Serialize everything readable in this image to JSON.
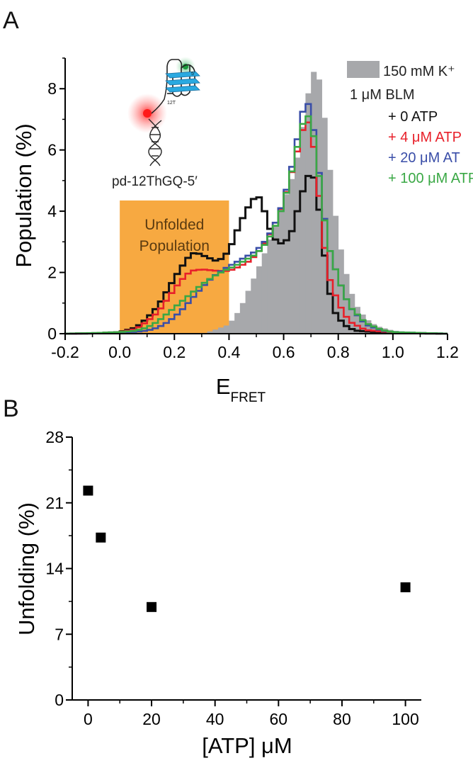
{
  "panels": {
    "a_label": "A",
    "b_label": "B"
  },
  "colors": {
    "grey_fill": "#a7a8ab",
    "black": "#111111",
    "red": "#e8202a",
    "blue": "#3a4ea8",
    "green": "#3aa845",
    "orange": "#f7a941"
  },
  "chart_data": [
    {
      "type": "area",
      "panel": "A",
      "xlabel": "E",
      "xlabel_sub": "FRET",
      "ylabel": "Population (%)",
      "xlim": [
        -0.2,
        1.2
      ],
      "ylim": [
        0,
        9
      ],
      "xticks": [
        "-0.2",
        "0.0",
        "0.2",
        "0.4",
        "0.6",
        "0.8",
        "1.0",
        "1.2"
      ],
      "yticks": [
        "0",
        "2",
        "4",
        "6",
        "8"
      ],
      "bin_width": 0.02,
      "unfolded_region": {
        "x": [
          0.0,
          0.4
        ],
        "height": 4.35,
        "label": [
          "Unfolded",
          "Population"
        ]
      },
      "inset_label": "pd-12ThGQ-5′",
      "inset_small_labels": [
        "12T",
        "5'"
      ],
      "legend": [
        {
          "text": "150 mM K⁺",
          "color": "#a7a8ab"
        },
        {
          "text": "1 μM BLM",
          "color": "#111111"
        },
        {
          "text": "+ 0 ATP",
          "color": "#111111"
        },
        {
          "text": "+ 4 μM ATP",
          "color": "#e8202a"
        },
        {
          "text": "+ 20 μM AT",
          "color": "#3a4ea8"
        },
        {
          "text": "+ 100 μM ATP",
          "color": "#3aa845"
        }
      ],
      "series": [
        {
          "name": "150 mM K⁺",
          "style": "filled",
          "color": "#a7a8ab",
          "points": [
            [
              -0.2,
              0
            ],
            [
              0.3,
              0
            ],
            [
              0.34,
              0.1
            ],
            [
              0.4,
              0.3
            ],
            [
              0.44,
              0.8
            ],
            [
              0.48,
              1.6
            ],
            [
              0.52,
              2.4
            ],
            [
              0.56,
              3.3
            ],
            [
              0.6,
              4.3
            ],
            [
              0.64,
              5.3
            ],
            [
              0.66,
              6.2
            ],
            [
              0.68,
              7.3
            ],
            [
              0.7,
              8.4
            ],
            [
              0.72,
              8.7
            ],
            [
              0.74,
              7.9
            ],
            [
              0.76,
              6.2
            ],
            [
              0.78,
              4.5
            ],
            [
              0.8,
              3.2
            ],
            [
              0.82,
              2.3
            ],
            [
              0.84,
              1.6
            ],
            [
              0.86,
              1.0
            ],
            [
              0.9,
              0.5
            ],
            [
              0.94,
              0.25
            ],
            [
              1.0,
              0.1
            ],
            [
              1.08,
              0.03
            ],
            [
              1.2,
              0
            ]
          ]
        },
        {
          "name": "+ 0 ATP",
          "style": "step",
          "color": "#111111",
          "points": [
            [
              -0.2,
              0
            ],
            [
              -0.1,
              0.01
            ],
            [
              0.0,
              0.05
            ],
            [
              0.06,
              0.2
            ],
            [
              0.1,
              0.5
            ],
            [
              0.14,
              0.9
            ],
            [
              0.18,
              1.5
            ],
            [
              0.22,
              2.1
            ],
            [
              0.26,
              2.6
            ],
            [
              0.28,
              2.65
            ],
            [
              0.32,
              2.5
            ],
            [
              0.36,
              2.35
            ],
            [
              0.4,
              2.7
            ],
            [
              0.44,
              3.6
            ],
            [
              0.48,
              4.3
            ],
            [
              0.5,
              4.5
            ],
            [
              0.52,
              4.4
            ],
            [
              0.54,
              3.6
            ],
            [
              0.58,
              2.9
            ],
            [
              0.62,
              3.1
            ],
            [
              0.64,
              3.6
            ],
            [
              0.66,
              4.4
            ],
            [
              0.7,
              5.4
            ],
            [
              0.72,
              4.8
            ],
            [
              0.74,
              3.3
            ],
            [
              0.76,
              1.8
            ],
            [
              0.78,
              0.8
            ],
            [
              0.82,
              0.3
            ],
            [
              0.86,
              0.1
            ],
            [
              1.0,
              0.02
            ],
            [
              1.2,
              0
            ]
          ]
        },
        {
          "name": "+ 4 μM ATP",
          "style": "step",
          "color": "#e8202a",
          "points": [
            [
              -0.2,
              0
            ],
            [
              -0.1,
              0.01
            ],
            [
              0.0,
              0.05
            ],
            [
              0.06,
              0.15
            ],
            [
              0.1,
              0.4
            ],
            [
              0.14,
              0.7
            ],
            [
              0.18,
              1.2
            ],
            [
              0.22,
              1.7
            ],
            [
              0.26,
              2.05
            ],
            [
              0.3,
              2.1
            ],
            [
              0.36,
              2.05
            ],
            [
              0.4,
              2.05
            ],
            [
              0.44,
              2.2
            ],
            [
              0.48,
              2.4
            ],
            [
              0.52,
              2.8
            ],
            [
              0.56,
              3.4
            ],
            [
              0.6,
              4.3
            ],
            [
              0.64,
              5.6
            ],
            [
              0.68,
              7.0
            ],
            [
              0.7,
              6.8
            ],
            [
              0.72,
              5.4
            ],
            [
              0.74,
              3.6
            ],
            [
              0.76,
              2.0
            ],
            [
              0.8,
              1.0
            ],
            [
              0.84,
              0.4
            ],
            [
              0.9,
              0.12
            ],
            [
              1.0,
              0.04
            ],
            [
              1.2,
              0
            ]
          ]
        },
        {
          "name": "+ 20 μM AT",
          "style": "step",
          "color": "#3a4ea8",
          "points": [
            [
              -0.2,
              0
            ],
            [
              -0.1,
              0.01
            ],
            [
              0.0,
              0.03
            ],
            [
              0.06,
              0.06
            ],
            [
              0.1,
              0.1
            ],
            [
              0.14,
              0.2
            ],
            [
              0.18,
              0.4
            ],
            [
              0.22,
              0.7
            ],
            [
              0.26,
              1.1
            ],
            [
              0.3,
              1.5
            ],
            [
              0.34,
              1.85
            ],
            [
              0.38,
              2.1
            ],
            [
              0.42,
              2.3
            ],
            [
              0.46,
              2.5
            ],
            [
              0.5,
              2.7
            ],
            [
              0.54,
              3.1
            ],
            [
              0.58,
              3.8
            ],
            [
              0.62,
              5.0
            ],
            [
              0.66,
              6.8
            ],
            [
              0.68,
              7.7
            ],
            [
              0.7,
              7.3
            ],
            [
              0.72,
              6.0
            ],
            [
              0.74,
              4.5
            ],
            [
              0.76,
              3.0
            ],
            [
              0.8,
              1.8
            ],
            [
              0.84,
              0.9
            ],
            [
              0.9,
              0.3
            ],
            [
              0.96,
              0.1
            ],
            [
              1.0,
              0.05
            ],
            [
              1.2,
              0
            ]
          ]
        },
        {
          "name": "+ 100 μM ATP",
          "style": "step",
          "color": "#3aa845",
          "points": [
            [
              -0.2,
              0
            ],
            [
              -0.1,
              0.02
            ],
            [
              0.0,
              0.05
            ],
            [
              0.06,
              0.1
            ],
            [
              0.1,
              0.2
            ],
            [
              0.14,
              0.4
            ],
            [
              0.18,
              0.7
            ],
            [
              0.22,
              1.0
            ],
            [
              0.26,
              1.3
            ],
            [
              0.3,
              1.6
            ],
            [
              0.34,
              1.85
            ],
            [
              0.38,
              2.05
            ],
            [
              0.42,
              2.2
            ],
            [
              0.46,
              2.4
            ],
            [
              0.5,
              2.6
            ],
            [
              0.54,
              3.0
            ],
            [
              0.58,
              3.7
            ],
            [
              0.62,
              4.9
            ],
            [
              0.66,
              6.5
            ],
            [
              0.68,
              7.2
            ],
            [
              0.7,
              7.0
            ],
            [
              0.72,
              5.9
            ],
            [
              0.74,
              4.4
            ],
            [
              0.76,
              3.0
            ],
            [
              0.8,
              1.8
            ],
            [
              0.84,
              0.9
            ],
            [
              0.9,
              0.35
            ],
            [
              0.96,
              0.12
            ],
            [
              1.0,
              0.05
            ],
            [
              1.2,
              0
            ]
          ]
        }
      ]
    },
    {
      "type": "scatter",
      "panel": "B",
      "xlabel": "[ATP] μM",
      "ylabel": "Unfolding (%)",
      "xlim": [
        -5,
        105
      ],
      "ylim": [
        0,
        28
      ],
      "xticks": [
        "0",
        "20",
        "40",
        "60",
        "80",
        "100"
      ],
      "yticks": [
        "0",
        "7",
        "14",
        "21",
        "28"
      ],
      "series": [
        {
          "color": "#000000",
          "x": [
            0,
            4,
            20,
            100
          ],
          "y": [
            22.3,
            17.3,
            9.9,
            12.0
          ]
        }
      ]
    }
  ]
}
